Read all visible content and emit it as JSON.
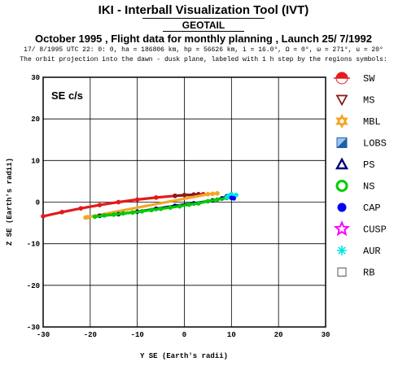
{
  "header": {
    "tool_title": "IKI - Interball Visualization Tool (IVT)",
    "spacecraft": "GEOTAIL",
    "subtitle": "October  1995 ,  Flight data for monthly planning ,   Launch 25/ 7/1992",
    "orbit_params": "17/ 8/1995 UTC 22: 0: 0, ha = 186806 km, hp = 56626 km, i = 16.0°, Ω =   0°, ω = 271°, u =  20°",
    "description": "The orbit projection into the dawn - dusk plane, labeled with 1 h step by the regions symbols:"
  },
  "chart_data": {
    "type": "scatter",
    "panel_label": "SE c/s",
    "xlabel": "Y SE (Earth's radii)",
    "ylabel": "Z SE (Earth's radii)",
    "xlim": [
      -30,
      30
    ],
    "ylim": [
      -30,
      30
    ],
    "x_ticks": [
      "-30",
      "-20",
      "-10",
      "0",
      "10",
      "20",
      "30"
    ],
    "y_ticks": [
      "30",
      "20",
      "10",
      "0",
      "-10",
      "-20",
      "-30"
    ],
    "grid": true,
    "legend_position": "right",
    "legend": [
      {
        "label": "SW",
        "symbol": "sw",
        "color": "#e41a1c"
      },
      {
        "label": "MS",
        "symbol": "triangle-down",
        "color": "#8b1a1a"
      },
      {
        "label": "MBL",
        "symbol": "star6",
        "color": "#f5a623"
      },
      {
        "label": "LOBS",
        "symbol": "square-split",
        "color": "#1f5fa8"
      },
      {
        "label": "PS",
        "symbol": "triangle-up",
        "color": "#00007a"
      },
      {
        "label": "NS",
        "symbol": "circle",
        "color": "#00cc00"
      },
      {
        "label": "CAP",
        "symbol": "hexagon",
        "color": "#0000ff"
      },
      {
        "label": "CUSP",
        "symbol": "star5",
        "color": "#ff00ff"
      },
      {
        "label": "AUR",
        "symbol": "asterisk",
        "color": "#00e5e5"
      },
      {
        "label": "RB",
        "symbol": "square",
        "color": "#555555"
      }
    ],
    "orbit_segments": [
      {
        "region": "SW",
        "color": "#e41a1c",
        "points": [
          [
            -30,
            -3.4
          ],
          [
            -26,
            -2.4
          ],
          [
            -22,
            -1.5
          ],
          [
            -18,
            -0.7
          ],
          [
            -14,
            0.0
          ],
          [
            -10,
            0.6
          ],
          [
            -6,
            1.1
          ],
          [
            -2,
            1.5
          ],
          [
            2,
            1.8
          ],
          [
            4,
            1.9
          ]
        ]
      },
      {
        "region": "MS",
        "color": "#8b1a1a",
        "points": [
          [
            -2,
            1.5
          ],
          [
            0,
            1.7
          ],
          [
            2,
            1.8
          ],
          [
            3,
            1.9
          ]
        ]
      },
      {
        "region": "MBL",
        "color": "#f5a623",
        "points": [
          [
            -21,
            -3.7
          ],
          [
            -20.5,
            -3.6
          ],
          [
            5,
            1.9
          ],
          [
            6,
            2.0
          ],
          [
            7,
            2.1
          ]
        ]
      },
      {
        "region": "PS",
        "color": "#00007a",
        "points": [
          [
            -18,
            -3.3
          ],
          [
            -14,
            -2.9
          ],
          [
            -10,
            -2.3
          ],
          [
            -6,
            -1.6
          ],
          [
            -2,
            -0.9
          ],
          [
            2,
            -0.3
          ],
          [
            6,
            0.4
          ],
          [
            8,
            0.9
          ],
          [
            9,
            1.4
          ]
        ]
      },
      {
        "region": "NS",
        "color": "#00cc00",
        "points": [
          [
            -19,
            -3.5
          ],
          [
            -17,
            -3.2
          ],
          [
            -15,
            -3.0
          ],
          [
            -13,
            -2.7
          ],
          [
            -11,
            -2.5
          ],
          [
            -9,
            -2.2
          ],
          [
            -7,
            -1.9
          ],
          [
            -5,
            -1.6
          ],
          [
            -3,
            -1.3
          ],
          [
            -1,
            -1.0
          ],
          [
            1,
            -0.6
          ],
          [
            3,
            -0.3
          ],
          [
            5,
            0.2
          ],
          [
            7,
            0.6
          ],
          [
            9,
            1.0
          ]
        ]
      },
      {
        "region": "AUR",
        "color": "#00e5e5",
        "points": [
          [
            9,
            1.2
          ],
          [
            9.5,
            1.6
          ],
          [
            10,
            1.9
          ],
          [
            10.5,
            1.4
          ],
          [
            11,
            1.7
          ]
        ]
      },
      {
        "region": "CAP",
        "color": "#0000ff",
        "points": [
          [
            10,
            1.0
          ],
          [
            10.5,
            0.9
          ]
        ]
      }
    ]
  }
}
